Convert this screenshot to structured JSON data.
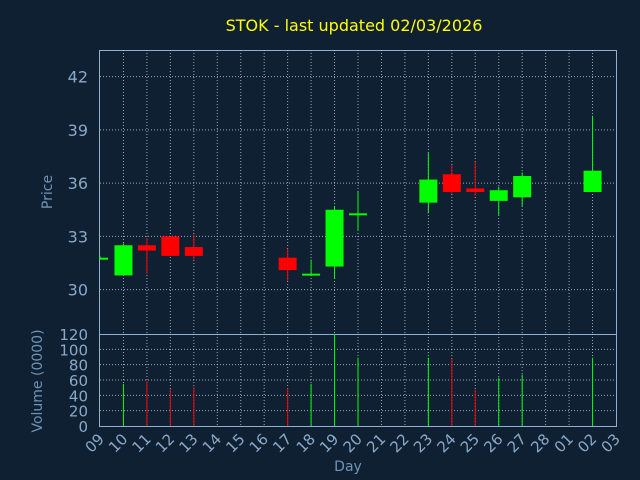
{
  "title": "STOK - last updated 02/03/2026",
  "colors": {
    "background": "#0f2033",
    "title": "#ffff00",
    "up": "#00ff00",
    "down": "#ff0000",
    "axis_text": "#89a9c8",
    "label_text": "#6f93b5",
    "grid": "#c9d6e3"
  },
  "chart_data": [
    {
      "type": "candlestick",
      "ylabel": "Price",
      "ylim": [
        27.5,
        43.5
      ],
      "yticks": [
        30,
        33,
        36,
        39,
        42
      ],
      "grid": true,
      "candles": [
        {
          "day": "09",
          "open": 31.8,
          "high": 31.9,
          "low": 31.7,
          "close": 31.8
        },
        {
          "day": "10",
          "open": 30.8,
          "high": 32.6,
          "low": 30.8,
          "close": 32.5
        },
        {
          "day": "11",
          "open": 32.5,
          "high": 32.9,
          "low": 30.9,
          "close": 32.2
        },
        {
          "day": "12",
          "open": 33.0,
          "high": 33.0,
          "low": 31.9,
          "close": 31.9
        },
        {
          "day": "13",
          "open": 32.4,
          "high": 33.1,
          "low": 31.7,
          "close": 31.9
        },
        {
          "day": "17",
          "open": 31.8,
          "high": 32.3,
          "low": 30.5,
          "close": 31.1
        },
        {
          "day": "18",
          "open": 30.8,
          "high": 31.7,
          "low": 30.8,
          "close": 30.9
        },
        {
          "day": "19",
          "open": 31.3,
          "high": 34.7,
          "low": 30.6,
          "close": 34.5
        },
        {
          "day": "20",
          "open": 34.3,
          "high": 35.5,
          "low": 33.3,
          "close": 34.3
        },
        {
          "day": "23",
          "open": 34.9,
          "high": 37.7,
          "low": 34.3,
          "close": 36.2
        },
        {
          "day": "24",
          "open": 36.5,
          "high": 37.0,
          "low": 35.4,
          "close": 35.5
        },
        {
          "day": "25",
          "open": 35.7,
          "high": 37.2,
          "low": 35.3,
          "close": 35.5
        },
        {
          "day": "26",
          "open": 35.0,
          "high": 35.8,
          "low": 34.2,
          "close": 35.6
        },
        {
          "day": "27",
          "open": 35.2,
          "high": 36.6,
          "low": 34.7,
          "close": 36.4
        },
        {
          "day": "02",
          "open": 35.5,
          "high": 39.8,
          "low": 35.5,
          "close": 36.7
        }
      ]
    },
    {
      "type": "bar",
      "ylabel": "Volume (0000)",
      "ylim": [
        0,
        120
      ],
      "yticks": [
        0,
        20,
        40,
        60,
        80,
        100,
        120
      ],
      "grid": true,
      "volumes": [
        {
          "day": "09",
          "value": 0,
          "direction": "up"
        },
        {
          "day": "10",
          "value": 55,
          "direction": "up"
        },
        {
          "day": "11",
          "value": 59,
          "direction": "down"
        },
        {
          "day": "12",
          "value": 48,
          "direction": "down"
        },
        {
          "day": "13",
          "value": 51,
          "direction": "down"
        },
        {
          "day": "17",
          "value": 49,
          "direction": "down"
        },
        {
          "day": "18",
          "value": 55,
          "direction": "up"
        },
        {
          "day": "19",
          "value": 120,
          "direction": "up"
        },
        {
          "day": "20",
          "value": 89,
          "direction": "up"
        },
        {
          "day": "23",
          "value": 89,
          "direction": "up"
        },
        {
          "day": "24",
          "value": 88,
          "direction": "down"
        },
        {
          "day": "25",
          "value": 47,
          "direction": "down"
        },
        {
          "day": "26",
          "value": 63,
          "direction": "up"
        },
        {
          "day": "27",
          "value": 67,
          "direction": "up"
        },
        {
          "day": "02",
          "value": 89,
          "direction": "up"
        }
      ]
    }
  ],
  "x_axis": {
    "label": "Day",
    "ticks": [
      "09",
      "10",
      "11",
      "12",
      "13",
      "14",
      "15",
      "16",
      "17",
      "18",
      "19",
      "20",
      "21",
      "22",
      "23",
      "24",
      "25",
      "26",
      "27",
      "28",
      "01",
      "02",
      "03"
    ]
  }
}
